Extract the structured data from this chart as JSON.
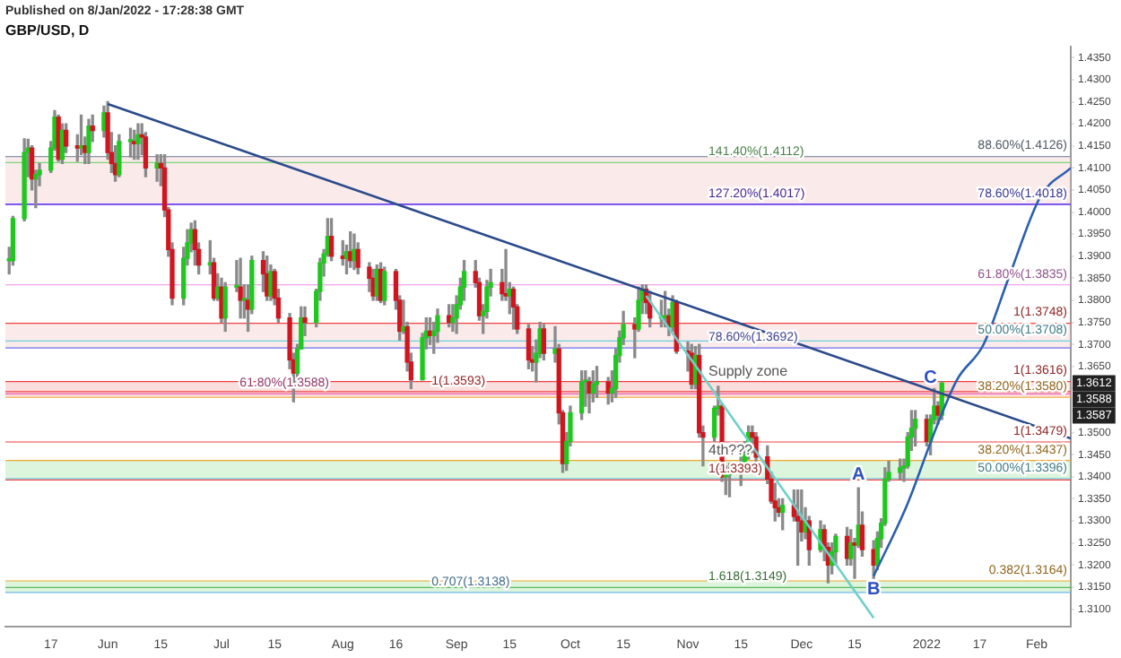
{
  "chart_data": {
    "type": "candlestick",
    "title": "Published on 8/Jan/2022 - 17:28:38 GMT",
    "subtitle": "GBP/USD, D",
    "x": [
      "2021-05-06",
      "2021-05-07",
      "2021-05-10",
      "2021-05-11",
      "2021-05-12",
      "2021-05-13",
      "2021-05-14",
      "2021-05-17",
      "2021-05-18",
      "2021-05-19",
      "2021-05-20",
      "2021-05-21",
      "2021-05-24",
      "2021-05-25",
      "2021-05-26",
      "2021-05-27",
      "2021-05-28",
      "2021-05-31",
      "2021-06-01",
      "2021-06-02",
      "2021-06-03",
      "2021-06-04",
      "2021-06-07",
      "2021-06-08",
      "2021-06-09",
      "2021-06-10",
      "2021-06-11",
      "2021-06-14",
      "2021-06-15",
      "2021-06-16",
      "2021-06-17",
      "2021-06-18",
      "2021-06-21",
      "2021-06-22",
      "2021-06-23",
      "2021-06-24",
      "2021-06-25",
      "2021-06-28",
      "2021-06-29",
      "2021-06-30",
      "2021-07-01",
      "2021-07-02",
      "2021-07-05",
      "2021-07-06",
      "2021-07-07",
      "2021-07-08",
      "2021-07-09",
      "2021-07-12",
      "2021-07-13",
      "2021-07-14",
      "2021-07-15",
      "2021-07-16",
      "2021-07-19",
      "2021-07-20",
      "2021-07-21",
      "2021-07-22",
      "2021-07-23",
      "2021-07-26",
      "2021-07-27",
      "2021-07-28",
      "2021-07-29",
      "2021-07-30",
      "2021-08-02",
      "2021-08-03",
      "2021-08-04",
      "2021-08-05",
      "2021-08-06",
      "2021-08-09",
      "2021-08-10",
      "2021-08-11",
      "2021-08-12",
      "2021-08-13",
      "2021-08-16",
      "2021-08-17",
      "2021-08-18",
      "2021-08-19",
      "2021-08-20",
      "2021-08-23",
      "2021-08-24",
      "2021-08-25",
      "2021-08-26",
      "2021-08-27",
      "2021-08-30",
      "2021-08-31",
      "2021-09-01",
      "2021-09-02",
      "2021-09-03",
      "2021-09-06",
      "2021-09-07",
      "2021-09-08",
      "2021-09-09",
      "2021-09-10",
      "2021-09-13",
      "2021-09-14",
      "2021-09-15",
      "2021-09-16",
      "2021-09-17",
      "2021-09-20",
      "2021-09-21",
      "2021-09-22",
      "2021-09-23",
      "2021-09-24",
      "2021-09-27",
      "2021-09-28",
      "2021-09-29",
      "2021-09-30",
      "2021-10-01",
      "2021-10-04",
      "2021-10-05",
      "2021-10-06",
      "2021-10-07",
      "2021-10-08",
      "2021-10-11",
      "2021-10-12",
      "2021-10-13",
      "2021-10-14",
      "2021-10-15",
      "2021-10-18",
      "2021-10-19",
      "2021-10-20",
      "2021-10-21",
      "2021-10-22",
      "2021-10-25",
      "2021-10-26",
      "2021-10-27",
      "2021-10-28",
      "2021-10-29",
      "2021-11-01",
      "2021-11-02",
      "2021-11-03",
      "2021-11-04",
      "2021-11-05",
      "2021-11-08",
      "2021-11-09",
      "2021-11-10",
      "2021-11-11",
      "2021-11-12",
      "2021-11-15",
      "2021-11-16",
      "2021-11-17",
      "2021-11-18",
      "2021-11-19",
      "2021-11-22",
      "2021-11-23",
      "2021-11-24",
      "2021-11-25",
      "2021-11-26",
      "2021-11-29",
      "2021-11-30",
      "2021-12-01",
      "2021-12-02",
      "2021-12-03",
      "2021-12-06",
      "2021-12-07",
      "2021-12-08",
      "2021-12-09",
      "2021-12-10",
      "2021-12-13",
      "2021-12-14",
      "2021-12-15",
      "2021-12-16",
      "2021-12-17",
      "2021-12-20",
      "2021-12-21",
      "2021-12-22",
      "2021-12-23",
      "2021-12-24",
      "2021-12-27",
      "2021-12-28",
      "2021-12-29",
      "2021-12-30",
      "2021-12-31",
      "2022-01-03",
      "2022-01-04",
      "2022-01-05",
      "2022-01-06",
      "2022-01-07"
    ],
    "ohlc": [
      [
        1.389,
        1.392,
        1.386,
        1.389
      ],
      [
        1.389,
        1.399,
        1.388,
        1.3985
      ],
      [
        1.3985,
        1.4166,
        1.398,
        1.4135
      ],
      [
        1.4135,
        1.4165,
        1.408,
        1.4145
      ],
      [
        1.4145,
        1.415,
        1.405,
        1.4075
      ],
      [
        1.4075,
        1.4095,
        1.401,
        1.4085
      ],
      [
        1.4085,
        1.411,
        1.406,
        1.4095
      ],
      [
        1.4095,
        1.416,
        1.409,
        1.4145
      ],
      [
        1.4145,
        1.423,
        1.414,
        1.4215
      ],
      [
        1.4215,
        1.422,
        1.4115,
        1.412
      ],
      [
        1.412,
        1.42,
        1.411,
        1.4185
      ],
      [
        1.4185,
        1.42,
        1.4135,
        1.415
      ],
      [
        1.415,
        1.4175,
        1.4115,
        1.4145
      ],
      [
        1.4145,
        1.422,
        1.413,
        1.415
      ],
      [
        1.415,
        1.417,
        1.411,
        1.4135
      ],
      [
        1.4135,
        1.421,
        1.411,
        1.4195
      ],
      [
        1.4195,
        1.422,
        1.416,
        1.4185
      ],
      [
        1.4185,
        1.424,
        1.417,
        1.4225
      ],
      [
        1.4225,
        1.425,
        1.412,
        1.4135
      ],
      [
        1.4135,
        1.418,
        1.409,
        1.411
      ],
      [
        1.411,
        1.415,
        1.407,
        1.4085
      ],
      [
        1.4085,
        1.4175,
        1.408,
        1.416
      ],
      [
        1.416,
        1.419,
        1.4125,
        1.416
      ],
      [
        1.416,
        1.4185,
        1.412,
        1.4155
      ],
      [
        1.4155,
        1.42,
        1.412,
        1.4175
      ],
      [
        1.4175,
        1.42,
        1.413,
        1.417
      ],
      [
        1.417,
        1.418,
        1.408,
        1.41
      ],
      [
        1.41,
        1.413,
        1.407,
        1.411
      ],
      [
        1.411,
        1.413,
        1.406,
        1.41
      ],
      [
        1.41,
        1.413,
        1.399,
        1.4005
      ],
      [
        1.4005,
        1.401,
        1.39,
        1.3915
      ],
      [
        1.3915,
        1.393,
        1.379,
        1.3805
      ],
      [
        1.3805,
        1.392,
        1.379,
        1.3895
      ],
      [
        1.3895,
        1.396,
        1.388,
        1.393
      ],
      [
        1.393,
        1.3975,
        1.391,
        1.396
      ],
      [
        1.396,
        1.398,
        1.388,
        1.3915
      ],
      [
        1.3915,
        1.393,
        1.386,
        1.388
      ],
      [
        1.388,
        1.3935,
        1.386,
        1.3885
      ],
      [
        1.3885,
        1.3895,
        1.38,
        1.3805
      ],
      [
        1.3805,
        1.386,
        1.38,
        1.383
      ],
      [
        1.383,
        1.385,
        1.375,
        1.376
      ],
      [
        1.376,
        1.384,
        1.373,
        1.383
      ],
      [
        1.383,
        1.389,
        1.382,
        1.383
      ],
      [
        1.383,
        1.3895,
        1.376,
        1.38
      ],
      [
        1.38,
        1.3835,
        1.376,
        1.38
      ],
      [
        1.38,
        1.3835,
        1.373,
        1.378
      ],
      [
        1.378,
        1.39,
        1.377,
        1.389
      ],
      [
        1.389,
        1.391,
        1.382,
        1.386
      ],
      [
        1.386,
        1.39,
        1.38,
        1.381
      ],
      [
        1.381,
        1.388,
        1.38,
        1.3865
      ],
      [
        1.3865,
        1.387,
        1.379,
        1.3805
      ],
      [
        1.3805,
        1.3825,
        1.375,
        1.376
      ],
      [
        1.376,
        1.377,
        1.3645,
        1.3665
      ],
      [
        1.3665,
        1.368,
        1.357,
        1.3635
      ],
      [
        1.3635,
        1.37,
        1.3605,
        1.369
      ],
      [
        1.369,
        1.3785,
        1.369,
        1.376
      ],
      [
        1.376,
        1.3785,
        1.372,
        1.375
      ],
      [
        1.375,
        1.3825,
        1.374,
        1.382
      ],
      [
        1.382,
        1.3895,
        1.38,
        1.3885
      ],
      [
        1.3885,
        1.3915,
        1.3855,
        1.3905
      ],
      [
        1.3905,
        1.3985,
        1.39,
        1.3945
      ],
      [
        1.3945,
        1.3985,
        1.389,
        1.39
      ],
      [
        1.39,
        1.3935,
        1.388,
        1.3895
      ],
      [
        1.3895,
        1.3925,
        1.386,
        1.391
      ],
      [
        1.391,
        1.3955,
        1.3875,
        1.389
      ],
      [
        1.389,
        1.395,
        1.387,
        1.3915
      ],
      [
        1.3915,
        1.393,
        1.386,
        1.3875
      ],
      [
        1.3875,
        1.3885,
        1.382,
        1.385
      ],
      [
        1.385,
        1.387,
        1.38,
        1.381
      ],
      [
        1.381,
        1.388,
        1.38,
        1.387
      ],
      [
        1.387,
        1.3885,
        1.3795,
        1.38
      ],
      [
        1.38,
        1.3875,
        1.379,
        1.3865
      ],
      [
        1.3865,
        1.387,
        1.378,
        1.38
      ],
      [
        1.38,
        1.381,
        1.371,
        1.373
      ],
      [
        1.373,
        1.38,
        1.3725,
        1.374
      ],
      [
        1.374,
        1.375,
        1.364,
        1.366
      ],
      [
        1.366,
        1.368,
        1.36,
        1.362
      ],
      [
        1.362,
        1.3725,
        1.362,
        1.3715
      ],
      [
        1.3715,
        1.376,
        1.369,
        1.373
      ],
      [
        1.373,
        1.376,
        1.37,
        1.372
      ],
      [
        1.372,
        1.375,
        1.368,
        1.373
      ],
      [
        1.373,
        1.378,
        1.3705,
        1.3765
      ],
      [
        1.3765,
        1.379,
        1.374,
        1.375
      ],
      [
        1.375,
        1.379,
        1.373,
        1.376
      ],
      [
        1.376,
        1.381,
        1.3725,
        1.379
      ],
      [
        1.379,
        1.385,
        1.378,
        1.383
      ],
      [
        1.383,
        1.389,
        1.38,
        1.3865
      ],
      [
        1.3865,
        1.389,
        1.383,
        1.384
      ],
      [
        1.384,
        1.385,
        1.3755,
        1.3765
      ],
      [
        1.3765,
        1.379,
        1.3725,
        1.3775
      ],
      [
        1.3775,
        1.3845,
        1.376,
        1.383
      ],
      [
        1.383,
        1.387,
        1.381,
        1.384
      ],
      [
        1.384,
        1.387,
        1.38,
        1.3815
      ],
      [
        1.3815,
        1.3915,
        1.38,
        1.381
      ],
      [
        1.381,
        1.384,
        1.377,
        1.3825
      ],
      [
        1.3825,
        1.383,
        1.3735,
        1.3785
      ],
      [
        1.3785,
        1.379,
        1.3725,
        1.3735
      ],
      [
        1.3735,
        1.3745,
        1.3645,
        1.3665
      ],
      [
        1.3665,
        1.3695,
        1.364,
        1.366
      ],
      [
        1.366,
        1.371,
        1.3615,
        1.368
      ],
      [
        1.368,
        1.375,
        1.367,
        1.3735
      ],
      [
        1.3735,
        1.3745,
        1.3665,
        1.368
      ],
      [
        1.368,
        1.374,
        1.366,
        1.369
      ],
      [
        1.369,
        1.37,
        1.352,
        1.3545
      ],
      [
        1.3545,
        1.355,
        1.341,
        1.343
      ],
      [
        1.343,
        1.35,
        1.3415,
        1.348
      ],
      [
        1.348,
        1.356,
        1.347,
        1.3545
      ],
      [
        1.3545,
        1.364,
        1.353,
        1.3615
      ],
      [
        1.3615,
        1.364,
        1.356,
        1.3615
      ],
      [
        1.3615,
        1.3625,
        1.3545,
        1.359
      ],
      [
        1.359,
        1.364,
        1.357,
        1.361
      ],
      [
        1.361,
        1.365,
        1.358,
        1.3615
      ],
      [
        1.3615,
        1.3625,
        1.3565,
        1.359
      ],
      [
        1.359,
        1.364,
        1.357,
        1.36
      ],
      [
        1.36,
        1.369,
        1.358,
        1.3675
      ],
      [
        1.3675,
        1.373,
        1.366,
        1.3715
      ],
      [
        1.3715,
        1.3775,
        1.37,
        1.3745
      ],
      [
        1.3745,
        1.376,
        1.367,
        1.3735
      ],
      [
        1.3735,
        1.383,
        1.373,
        1.38
      ],
      [
        1.38,
        1.3835,
        1.377,
        1.3825
      ],
      [
        1.3825,
        1.3835,
        1.377,
        1.3795
      ],
      [
        1.3795,
        1.382,
        1.374,
        1.376
      ],
      [
        1.376,
        1.38,
        1.374,
        1.376
      ],
      [
        1.376,
        1.382,
        1.374,
        1.3765
      ],
      [
        1.3765,
        1.378,
        1.372,
        1.374
      ],
      [
        1.374,
        1.381,
        1.373,
        1.3795
      ],
      [
        1.3795,
        1.38,
        1.368,
        1.3685
      ],
      [
        1.3685,
        1.3705,
        1.364,
        1.368
      ],
      [
        1.368,
        1.37,
        1.36,
        1.361
      ],
      [
        1.361,
        1.3695,
        1.36,
        1.3675
      ],
      [
        1.3675,
        1.37,
        1.349,
        1.35
      ],
      [
        1.35,
        1.3515,
        1.3425,
        1.349
      ],
      [
        1.349,
        1.356,
        1.347,
        1.3555
      ],
      [
        1.3555,
        1.3605,
        1.354,
        1.356
      ],
      [
        1.356,
        1.3565,
        1.339,
        1.34
      ],
      [
        1.34,
        1.3425,
        1.336,
        1.3405
      ],
      [
        1.3405,
        1.343,
        1.3355,
        1.341
      ],
      [
        1.341,
        1.346,
        1.338,
        1.3425
      ],
      [
        1.3425,
        1.348,
        1.341,
        1.345
      ],
      [
        1.345,
        1.3515,
        1.344,
        1.35
      ],
      [
        1.35,
        1.3515,
        1.3455,
        1.349
      ],
      [
        1.349,
        1.35,
        1.342,
        1.3445
      ],
      [
        1.3445,
        1.347,
        1.3385,
        1.3395
      ],
      [
        1.3395,
        1.341,
        1.334,
        1.3345
      ],
      [
        1.3345,
        1.3385,
        1.33,
        1.333
      ],
      [
        1.333,
        1.335,
        1.331,
        1.332
      ],
      [
        1.332,
        1.335,
        1.328,
        1.3335
      ],
      [
        1.3335,
        1.337,
        1.33,
        1.331
      ],
      [
        1.331,
        1.337,
        1.32,
        1.33
      ],
      [
        1.33,
        1.337,
        1.3255,
        1.3275
      ],
      [
        1.3275,
        1.333,
        1.326,
        1.33
      ],
      [
        1.33,
        1.331,
        1.32,
        1.3235
      ],
      [
        1.3235,
        1.33,
        1.323,
        1.328
      ],
      [
        1.328,
        1.329,
        1.321,
        1.324
      ],
      [
        1.324,
        1.325,
        1.316,
        1.32
      ],
      [
        1.32,
        1.325,
        1.318,
        1.323
      ],
      [
        1.323,
        1.327,
        1.32,
        1.3265
      ],
      [
        1.3265,
        1.3285,
        1.32,
        1.3215
      ],
      [
        1.3215,
        1.328,
        1.32,
        1.325
      ],
      [
        1.325,
        1.326,
        1.317,
        1.3245
      ],
      [
        1.3245,
        1.3375,
        1.324,
        1.329
      ],
      [
        1.329,
        1.332,
        1.322,
        1.3235
      ],
      [
        1.3235,
        1.3255,
        1.317,
        1.32
      ],
      [
        1.32,
        1.3275,
        1.319,
        1.326
      ],
      [
        1.326,
        1.3305,
        1.324,
        1.3295
      ],
      [
        1.3295,
        1.342,
        1.329,
        1.3395
      ],
      [
        1.3395,
        1.3435,
        1.339,
        1.341
      ],
      [
        1.341,
        1.344,
        1.3395,
        1.342
      ],
      [
        1.342,
        1.344,
        1.339,
        1.3425
      ],
      [
        1.3425,
        1.35,
        1.342,
        1.349
      ],
      [
        1.349,
        1.355,
        1.346,
        1.351
      ],
      [
        1.351,
        1.355,
        1.347,
        1.353
      ],
      [
        1.353,
        1.354,
        1.347,
        1.348
      ],
      [
        1.348,
        1.354,
        1.345,
        1.353
      ],
      [
        1.353,
        1.36,
        1.352,
        1.356
      ],
      [
        1.356,
        1.357,
        1.352,
        1.354
      ],
      [
        1.354,
        1.3615,
        1.353,
        1.3612
      ]
    ],
    "series": [
      {
        "type": "line",
        "color": "#2b4a8b",
        "x": [
          "2021-06-01",
          "2022-02-10"
        ],
        "values": [
          1.4245,
          1.3487
        ]
      },
      {
        "type": "line",
        "color": "#2b5fb0",
        "x": [
          "2021-12-20",
          "2021-12-29",
          "2022-01-05",
          "2022-01-11",
          "2022-01-18",
          "2022-01-25",
          "2022-02-02",
          "2022-02-10"
        ],
        "values": [
          1.3175,
          1.334,
          1.35,
          1.362,
          1.37,
          1.386,
          1.4035,
          1.41
        ]
      },
      {
        "type": "line",
        "color": "#6fd0c8",
        "x": [
          "2021-10-21",
          "2021-12-20"
        ],
        "values": [
          1.381,
          1.308
        ]
      }
    ],
    "xlim": [
      "2021-05-05",
      "2022-02-10"
    ],
    "xticks": [
      {
        "value": "2021-05-17",
        "label": "17"
      },
      {
        "value": "2021-06-01",
        "label": "Jun"
      },
      {
        "value": "2021-06-15",
        "label": "15"
      },
      {
        "value": "2021-07-01",
        "label": "Jul"
      },
      {
        "value": "2021-07-15",
        "label": "15"
      },
      {
        "value": "2021-08-02",
        "label": "Aug"
      },
      {
        "value": "2021-08-16",
        "label": "16"
      },
      {
        "value": "2021-09-01",
        "label": "Sep"
      },
      {
        "value": "2021-09-15",
        "label": "15"
      },
      {
        "value": "2021-10-01",
        "label": "Oct"
      },
      {
        "value": "2021-10-15",
        "label": "15"
      },
      {
        "value": "2021-11-01",
        "label": "Nov"
      },
      {
        "value": "2021-11-15",
        "label": "15"
      },
      {
        "value": "2021-12-01",
        "label": "Dec"
      },
      {
        "value": "2021-12-15",
        "label": "15"
      },
      {
        "value": "2022-01-03",
        "label": "2022"
      },
      {
        "value": "2022-01-17",
        "label": "17"
      },
      {
        "value": "2022-02-01",
        "label": "Feb"
      }
    ],
    "ylim": [
      1.306,
      1.4375
    ],
    "yticks": [
      {
        "value": 1.31,
        "label": "1.3100"
      },
      {
        "value": 1.315,
        "label": "1.3150"
      },
      {
        "value": 1.32,
        "label": "1.3200"
      },
      {
        "value": 1.325,
        "label": "1.3250"
      },
      {
        "value": 1.33,
        "label": "1.3300"
      },
      {
        "value": 1.335,
        "label": "1.3350"
      },
      {
        "value": 1.34,
        "label": "1.3400"
      },
      {
        "value": 1.345,
        "label": "1.3450"
      },
      {
        "value": 1.35,
        "label": "1.3500"
      },
      {
        "value": 1.355,
        "label": null
      },
      {
        "value": 1.36,
        "label": null
      },
      {
        "value": 1.365,
        "label": "1.3650"
      },
      {
        "value": 1.37,
        "label": "1.3700"
      },
      {
        "value": 1.375,
        "label": "1.3750"
      },
      {
        "value": 1.38,
        "label": "1.3800"
      },
      {
        "value": 1.385,
        "label": "1.3850"
      },
      {
        "value": 1.39,
        "label": "1.3900"
      },
      {
        "value": 1.395,
        "label": "1.3950"
      },
      {
        "value": 1.4,
        "label": "1.4000"
      },
      {
        "value": 1.405,
        "label": "1.4050"
      },
      {
        "value": 1.41,
        "label": "1.4100"
      },
      {
        "value": 1.415,
        "label": "1.4150"
      },
      {
        "value": 1.42,
        "label": "1.4200"
      },
      {
        "value": 1.425,
        "label": "1.4250"
      },
      {
        "value": 1.43,
        "label": "1.4300"
      },
      {
        "value": 1.435,
        "label": "1.4350"
      }
    ],
    "ref_lines": [
      {
        "axis": "y",
        "value": 1.4126,
        "label": "88.60%(1.4126)",
        "color": "#8794a8"
      },
      {
        "axis": "y",
        "value": 1.4112,
        "label": "141.40%(1.4112)",
        "color": "#7bd67b"
      },
      {
        "axis": "y",
        "value": 1.4018,
        "label": "78.60%(1.4018)",
        "color": "#5b5bf0"
      },
      {
        "axis": "y",
        "value": 1.4017,
        "label": "127.20%(1.4017)",
        "color": "#7a3cf0"
      },
      {
        "axis": "y",
        "value": 1.3835,
        "label": "61.80%(1.3835)",
        "color": "#f08ae8"
      },
      {
        "axis": "y",
        "value": 1.3748,
        "label": "1(1.3748)",
        "color": "#f04040"
      },
      {
        "axis": "y",
        "value": 1.3708,
        "label": "50.00%(1.3708)",
        "color": "#6ccfe0"
      },
      {
        "axis": "y",
        "value": 1.3692,
        "label": "78.60%(1.3692)",
        "color": "#6f6ff0"
      },
      {
        "axis": "y",
        "value": 1.3616,
        "label": "1(1.3616)",
        "color": "#f04040"
      },
      {
        "axis": "y",
        "value": 1.3593,
        "label": "1(1.3593)",
        "color": "#f04040"
      },
      {
        "axis": "y",
        "value": 1.3588,
        "label": "61.80%(1.3588)",
        "color": "#f060b0"
      },
      {
        "axis": "y",
        "value": 1.358,
        "label": "38.20%(1.3580)",
        "color": "#f0a830"
      },
      {
        "axis": "y",
        "value": 1.3479,
        "label": "1(1.3479)",
        "color": "#f04040"
      },
      {
        "axis": "y",
        "value": 1.3437,
        "label": "38.20%(1.3437)",
        "color": "#f0a830"
      },
      {
        "axis": "y",
        "value": 1.3396,
        "label": "50.00%(1.3396)",
        "color": "#6ccfe0"
      },
      {
        "axis": "y",
        "value": 1.3393,
        "label": "1(1.3393)",
        "color": "#f04040"
      },
      {
        "axis": "y",
        "value": 1.3164,
        "label": "0.382(1.3164)",
        "color": "#f0a830"
      },
      {
        "axis": "y",
        "value": 1.3149,
        "label": "1.618(1.3149)",
        "color": "#5cb85c"
      },
      {
        "axis": "y",
        "value": 1.3138,
        "label": "0.707(1.3138)",
        "color": "#6fb8e8"
      }
    ],
    "bands": [
      {
        "axis": "y",
        "from": 1.4017,
        "to": 1.4126,
        "color": "#f2c4c4"
      },
      {
        "axis": "y",
        "from": 1.3692,
        "to": 1.3748,
        "color": "#f2c4c4"
      },
      {
        "axis": "y",
        "from": 1.358,
        "to": 1.3616,
        "label": "Supply zone",
        "color": "#f2a0a0"
      },
      {
        "axis": "y",
        "from": 1.3396,
        "to": 1.3437,
        "label": "4th???",
        "color": "#9be29b"
      },
      {
        "axis": "y",
        "from": 1.3138,
        "to": 1.3164,
        "color": "#9be29b"
      }
    ],
    "annotations": [
      {
        "text": "A",
        "x": "2021-12-16",
        "y": 1.3405
      },
      {
        "text": "B",
        "x": "2021-12-20",
        "y": 1.3145
      },
      {
        "text": "C",
        "x": "2022-01-04",
        "y": 1.3625
      },
      {
        "text": "1.3612",
        "y": 1.3612
      },
      "1.3588",
      "1.3587"
    ],
    "legend": false,
    "grid": false
  }
}
